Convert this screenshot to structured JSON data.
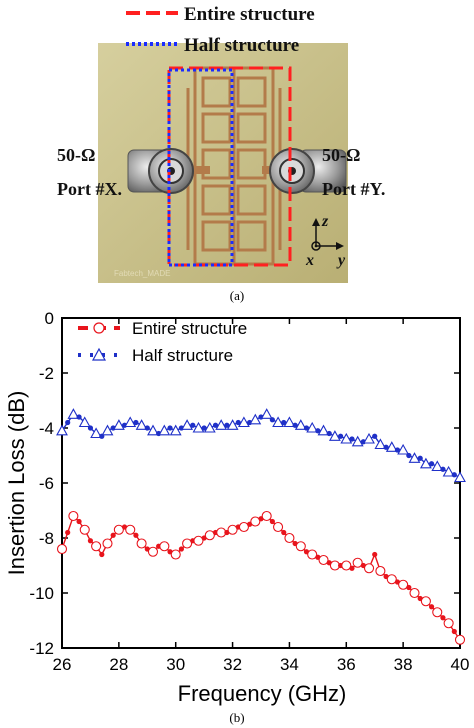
{
  "figure": {
    "legend_top": {
      "entire": "Entire structure",
      "half": "Half structure"
    },
    "photo": {
      "port_left_impedance": "50-Ω",
      "port_left_name": "Port #X.",
      "port_right_impedance": "50-Ω",
      "port_right_name": "Port #Y.",
      "axis_z": "z",
      "axis_x": "x",
      "axis_y": "y",
      "board_watermark": "Fabtech_MADE",
      "colors": {
        "board": "#c9c08a",
        "entire_box": "#ff2020",
        "half_box": "#1a2cff",
        "copper": "#b37b4a"
      }
    },
    "caption_a": "(a)",
    "caption_b": "(b)"
  },
  "chart_data": {
    "type": "line",
    "xlabel": "Frequency (GHz)",
    "ylabel": "Insertion Loss (dB)",
    "xlim": [
      26,
      40
    ],
    "ylim": [
      -12,
      0
    ],
    "x_ticks": [
      "26",
      "28",
      "30",
      "32",
      "34",
      "36",
      "38",
      "40"
    ],
    "y_ticks": [
      "0",
      "-2",
      "-4",
      "-6",
      "-8",
      "-10",
      "-12"
    ],
    "x_tick_values": [
      26,
      28,
      30,
      32,
      34,
      36,
      38,
      40
    ],
    "y_tick_values": [
      0,
      -2,
      -4,
      -6,
      -8,
      -10,
      -12
    ],
    "legend_position": "top-left",
    "grid": false,
    "series": [
      {
        "name": "Entire structure",
        "color": "#e8141c",
        "marker": "circle",
        "x": [
          26.0,
          26.2,
          26.4,
          26.6,
          26.8,
          27.0,
          27.2,
          27.4,
          27.6,
          27.8,
          28.0,
          28.2,
          28.4,
          28.6,
          28.8,
          29.0,
          29.2,
          29.4,
          29.6,
          29.8,
          30.0,
          30.2,
          30.4,
          30.6,
          30.8,
          31.0,
          31.2,
          31.4,
          31.6,
          31.8,
          32.0,
          32.2,
          32.4,
          32.6,
          32.8,
          33.0,
          33.2,
          33.4,
          33.6,
          33.8,
          34.0,
          34.2,
          34.4,
          34.6,
          34.8,
          35.0,
          35.2,
          35.4,
          35.6,
          35.8,
          36.0,
          36.2,
          36.4,
          36.6,
          36.8,
          37.0,
          37.2,
          37.4,
          37.6,
          37.8,
          38.0,
          38.2,
          38.4,
          38.6,
          38.8,
          39.0,
          39.2,
          39.4,
          39.6,
          39.8,
          40.0
        ],
        "values": [
          -8.4,
          -7.8,
          -7.2,
          -7.4,
          -7.7,
          -8.1,
          -8.3,
          -8.6,
          -8.2,
          -7.9,
          -7.7,
          -7.6,
          -7.7,
          -7.9,
          -8.2,
          -8.4,
          -8.5,
          -8.3,
          -8.3,
          -8.5,
          -8.6,
          -8.4,
          -8.2,
          -8.1,
          -8.1,
          -8.0,
          -7.9,
          -7.8,
          -7.8,
          -7.8,
          -7.7,
          -7.6,
          -7.6,
          -7.5,
          -7.4,
          -7.3,
          -7.2,
          -7.4,
          -7.6,
          -7.8,
          -8.0,
          -8.2,
          -8.3,
          -8.5,
          -8.6,
          -8.7,
          -8.8,
          -8.9,
          -9.0,
          -9.0,
          -9.0,
          -9.1,
          -8.9,
          -9.0,
          -9.1,
          -8.6,
          -9.2,
          -9.4,
          -9.5,
          -9.6,
          -9.7,
          -9.8,
          -10.0,
          -10.2,
          -10.3,
          -10.5,
          -10.7,
          -10.9,
          -11.1,
          -11.4,
          -11.7
        ]
      },
      {
        "name": "Half structure",
        "color": "#1f30c8",
        "marker": "triangle",
        "x": [
          26.0,
          26.2,
          26.4,
          26.6,
          26.8,
          27.0,
          27.2,
          27.4,
          27.6,
          27.8,
          28.0,
          28.2,
          28.4,
          28.6,
          28.8,
          29.0,
          29.2,
          29.4,
          29.6,
          29.8,
          30.0,
          30.2,
          30.4,
          30.6,
          30.8,
          31.0,
          31.2,
          31.4,
          31.6,
          31.8,
          32.0,
          32.2,
          32.4,
          32.6,
          32.8,
          33.0,
          33.2,
          33.4,
          33.6,
          33.8,
          34.0,
          34.2,
          34.4,
          34.6,
          34.8,
          35.0,
          35.2,
          35.4,
          35.6,
          35.8,
          36.0,
          36.2,
          36.4,
          36.6,
          36.8,
          37.0,
          37.2,
          37.4,
          37.6,
          37.8,
          38.0,
          38.2,
          38.4,
          38.6,
          38.8,
          39.0,
          39.2,
          39.4,
          39.6,
          39.8,
          40.0
        ],
        "values": [
          -4.1,
          -3.8,
          -3.5,
          -3.6,
          -3.8,
          -4.0,
          -4.2,
          -4.3,
          -4.1,
          -4.0,
          -3.9,
          -3.9,
          -3.8,
          -3.8,
          -3.9,
          -4.0,
          -4.1,
          -4.2,
          -4.1,
          -4.0,
          -4.1,
          -4.0,
          -3.9,
          -3.9,
          -4.0,
          -4.0,
          -4.0,
          -3.9,
          -3.9,
          -3.9,
          -3.9,
          -3.8,
          -3.8,
          -3.8,
          -3.7,
          -3.6,
          -3.5,
          -3.7,
          -3.8,
          -3.8,
          -3.8,
          -3.9,
          -3.9,
          -4.0,
          -4.0,
          -4.1,
          -4.1,
          -4.2,
          -4.3,
          -4.3,
          -4.4,
          -4.4,
          -4.5,
          -4.5,
          -4.4,
          -4.3,
          -4.6,
          -4.7,
          -4.7,
          -4.8,
          -4.8,
          -5.0,
          -5.1,
          -5.1,
          -5.3,
          -5.3,
          -5.4,
          -5.5,
          -5.6,
          -5.7,
          -5.8
        ]
      }
    ]
  }
}
